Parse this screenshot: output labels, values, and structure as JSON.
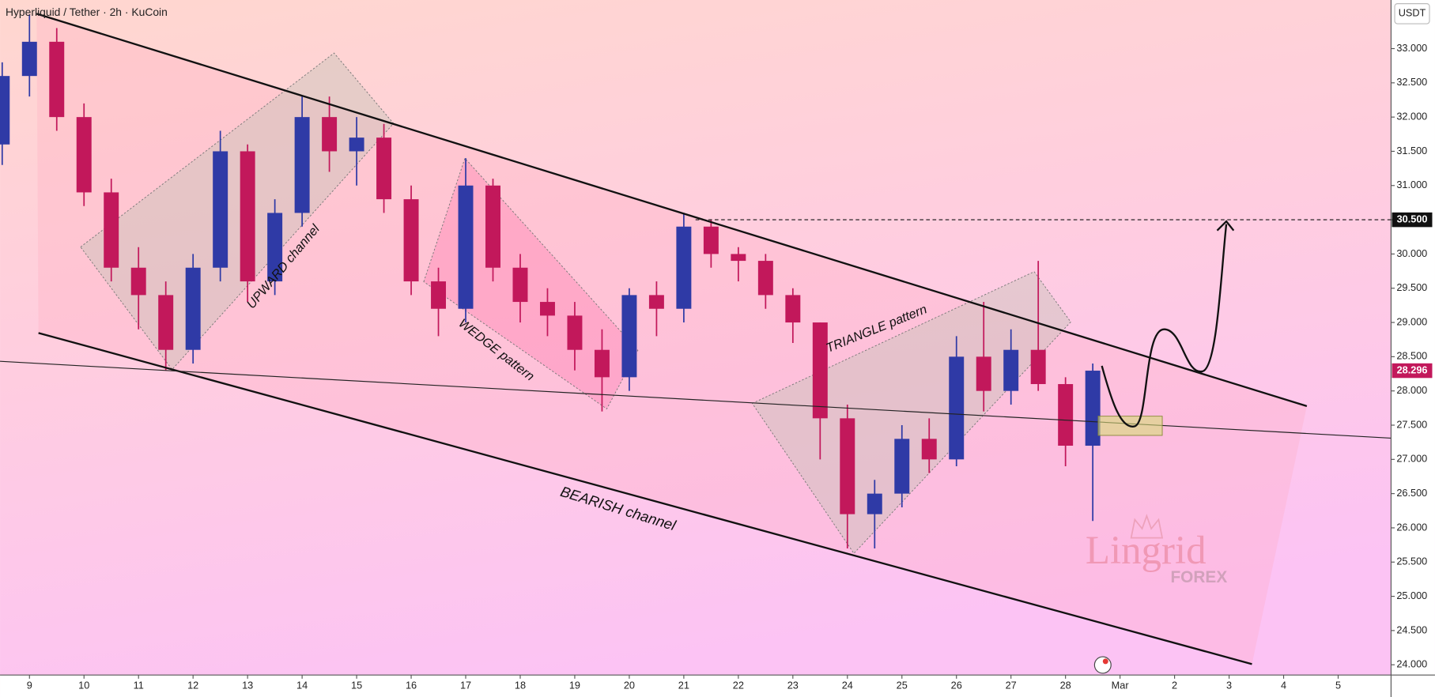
{
  "chart_data": {
    "type": "candlestick",
    "title": "Hyperliquid / Tether · 2h · KuCoin",
    "y_axis_label": "USDT",
    "x": [
      8.5,
      9,
      9.5,
      10,
      10.5,
      11,
      11.5,
      12,
      12.5,
      13,
      13.5,
      14,
      14.5,
      15,
      15.5,
      16,
      16.5,
      17,
      17.5,
      18,
      18.5,
      19,
      19.5,
      20,
      20.5,
      21,
      21.5,
      22,
      22.5,
      23,
      23.5,
      24,
      24.5,
      25,
      25.5,
      26,
      26.5,
      27,
      27.5,
      28,
      28.5
    ],
    "open": [
      31.6,
      32.6,
      33.1,
      32.0,
      30.9,
      29.8,
      29.4,
      28.6,
      29.8,
      31.5,
      29.6,
      30.6,
      32.0,
      31.5,
      31.7,
      30.8,
      29.6,
      29.2,
      31.0,
      29.8,
      29.3,
      29.1,
      28.6,
      28.2,
      29.4,
      29.2,
      30.4,
      30.0,
      29.9,
      29.4,
      29.0,
      27.6,
      26.2,
      26.5,
      27.3,
      27.0,
      28.5,
      28.0,
      28.6,
      28.1,
      27.2
    ],
    "high": [
      32.8,
      33.5,
      33.3,
      32.2,
      31.1,
      30.1,
      29.6,
      30.0,
      31.8,
      31.6,
      30.8,
      32.3,
      32.3,
      32.0,
      31.9,
      31.0,
      29.8,
      31.4,
      31.1,
      30.0,
      29.5,
      29.3,
      28.9,
      29.5,
      29.6,
      30.6,
      30.5,
      30.1,
      30.0,
      29.5,
      29.0,
      27.8,
      26.7,
      27.5,
      27.6,
      28.8,
      29.3,
      28.9,
      29.9,
      28.2,
      28.4
    ],
    "low": [
      31.3,
      32.3,
      31.8,
      30.7,
      29.6,
      28.9,
      28.3,
      28.4,
      29.6,
      29.3,
      29.4,
      30.4,
      31.2,
      31.0,
      30.6,
      29.4,
      28.8,
      29.0,
      29.6,
      29.0,
      28.8,
      28.3,
      27.7,
      28.0,
      28.8,
      29.0,
      29.8,
      29.6,
      29.2,
      28.7,
      27.0,
      25.7,
      25.7,
      26.3,
      26.8,
      26.9,
      27.7,
      27.8,
      28.0,
      26.9,
      26.1
    ],
    "close": [
      32.6,
      33.1,
      32.0,
      30.9,
      29.8,
      29.4,
      28.6,
      29.8,
      31.5,
      29.6,
      30.6,
      32.0,
      31.5,
      31.7,
      30.8,
      29.6,
      29.2,
      31.0,
      29.8,
      29.3,
      29.1,
      28.6,
      28.2,
      29.4,
      29.2,
      30.4,
      30.0,
      29.9,
      29.4,
      29.0,
      27.6,
      26.2,
      26.5,
      27.3,
      27.0,
      28.5,
      28.0,
      28.6,
      28.1,
      27.2,
      28.296
    ],
    "up_color": "#2f3aa6",
    "down_color": "#c2185b",
    "xlim": [
      8.46,
      33.97
    ],
    "ylim": [
      23.85,
      33.71
    ],
    "xticks": [
      9,
      10,
      11,
      12,
      13,
      14,
      15,
      16,
      17,
      18,
      19,
      20,
      21,
      22,
      23,
      24,
      25,
      26,
      27,
      28,
      {
        "value": 29,
        "label": "Mar"
      },
      {
        "value": 30,
        "label": "2"
      },
      {
        "value": 31,
        "label": "3"
      },
      {
        "value": 32,
        "label": "4"
      },
      {
        "value": 33,
        "label": "5"
      }
    ],
    "yticks": [
      {
        "value": 24,
        "label": "24.000"
      },
      {
        "value": 24.5,
        "label": "24.500"
      },
      {
        "value": 25,
        "label": "25.000"
      },
      {
        "value": 25.5,
        "label": "25.500"
      },
      {
        "value": 26,
        "label": "26.000"
      },
      {
        "value": 26.5,
        "label": "26.500"
      },
      {
        "value": 27,
        "label": "27.000"
      },
      {
        "value": 27.5,
        "label": "27.500"
      },
      {
        "value": 28,
        "label": "28.000"
      },
      {
        "value": 28.5,
        "label": "28.500"
      },
      {
        "value": 29,
        "label": "29.000"
      },
      {
        "value": 29.5,
        "label": "29.500"
      },
      {
        "value": 30,
        "label": "30.000"
      },
      {
        "value": 30.5,
        "label": "30.500"
      },
      {
        "value": 31,
        "label": "31.000"
      },
      {
        "value": 31.5,
        "label": "31.500"
      },
      {
        "value": 32,
        "label": "32.000"
      },
      {
        "value": 32.5,
        "label": "32.500"
      },
      {
        "value": 33,
        "label": "33.000"
      }
    ],
    "price_line": {
      "value": 30.5,
      "label": "30.500"
    },
    "annotations": [
      "UPWARD channel",
      "WEDGE pattern",
      "TRIANGLE pattern",
      "BEARISH channel"
    ],
    "watermark": [
      "Lingrid",
      "FOREX"
    ]
  }
}
